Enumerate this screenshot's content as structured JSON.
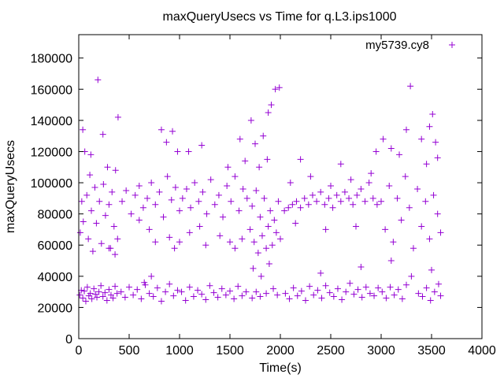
{
  "chart_data": {
    "type": "scatter",
    "title": "maxQueryUsecs vs Time for q.L3.ips1000",
    "xlabel": "Time(s)",
    "ylabel": "maxQueryUsecs",
    "xlim": [
      0,
      4000
    ],
    "ylim": [
      0,
      195000
    ],
    "x_ticks": [
      0,
      500,
      1000,
      1500,
      2000,
      2500,
      3000,
      3500,
      4000
    ],
    "y_ticks": [
      0,
      20000,
      40000,
      60000,
      80000,
      100000,
      120000,
      140000,
      160000,
      180000
    ],
    "x_tick_labels": [
      "0",
      "500",
      "1000",
      "1500",
      "2000",
      "2500",
      "3000",
      "3500",
      "4000"
    ],
    "y_tick_labels": [
      "0",
      "20000",
      "40000",
      "60000",
      "80000",
      "100000",
      "120000",
      "140000",
      "160000",
      "180000"
    ],
    "grid": false,
    "legend_position": "top-right",
    "series": [
      {
        "name": "my5739.cy8",
        "color": "#9400d3",
        "marker": "plus",
        "points": [
          [
            10,
            28000
          ],
          [
            25,
            31000
          ],
          [
            40,
            26000
          ],
          [
            55,
            30500
          ],
          [
            70,
            24000
          ],
          [
            85,
            33000
          ],
          [
            100,
            27500
          ],
          [
            115,
            29000
          ],
          [
            130,
            25500
          ],
          [
            150,
            32000
          ],
          [
            165,
            28500
          ],
          [
            180,
            26500
          ],
          [
            200,
            30000
          ],
          [
            220,
            34000
          ],
          [
            240,
            27000
          ],
          [
            260,
            29500
          ],
          [
            280,
            24500
          ],
          [
            300,
            31500
          ],
          [
            320,
            28000
          ],
          [
            340,
            26000
          ],
          [
            360,
            33500
          ],
          [
            380,
            29000
          ],
          [
            15,
            68000
          ],
          [
            30,
            88000
          ],
          [
            45,
            75000
          ],
          [
            60,
            120000
          ],
          [
            80,
            92000
          ],
          [
            95,
            64000
          ],
          [
            110,
            105000
          ],
          [
            125,
            82000
          ],
          [
            140,
            56000
          ],
          [
            160,
            97000
          ],
          [
            175,
            74000
          ],
          [
            190,
            166000
          ],
          [
            205,
            88000
          ],
          [
            225,
            61000
          ],
          [
            245,
            99000
          ],
          [
            265,
            79000
          ],
          [
            285,
            110000
          ],
          [
            300,
            86000
          ],
          [
            315,
            58000
          ],
          [
            330,
            94000
          ],
          [
            350,
            72000
          ],
          [
            365,
            108000
          ],
          [
            385,
            64000
          ],
          [
            390,
            142000
          ],
          [
            40,
            134000
          ],
          [
            120,
            118000
          ],
          [
            240,
            131000
          ],
          [
            300,
            58000
          ],
          [
            360,
            54000
          ],
          [
            420,
            30000
          ],
          [
            460,
            26500
          ],
          [
            500,
            33000
          ],
          [
            540,
            28000
          ],
          [
            580,
            31500
          ],
          [
            620,
            25500
          ],
          [
            660,
            34500
          ],
          [
            700,
            29000
          ],
          [
            740,
            27000
          ],
          [
            780,
            32500
          ],
          [
            820,
            24000
          ],
          [
            860,
            30000
          ],
          [
            900,
            35000
          ],
          [
            940,
            27500
          ],
          [
            980,
            31000
          ],
          [
            430,
            88000
          ],
          [
            470,
            95000
          ],
          [
            520,
            80000
          ],
          [
            560,
            92000
          ],
          [
            600,
            98000
          ],
          [
            640,
            84000
          ],
          [
            680,
            90000
          ],
          [
            720,
            100000
          ],
          [
            760,
            86000
          ],
          [
            800,
            94000
          ],
          [
            840,
            78000
          ],
          [
            880,
            104000
          ],
          [
            920,
            89000
          ],
          [
            960,
            97000
          ],
          [
            1000,
            82000
          ],
          [
            820,
            134000
          ],
          [
            870,
            126000
          ],
          [
            930,
            133000
          ],
          [
            980,
            120000
          ],
          [
            900,
            65000
          ],
          [
            950,
            58000
          ],
          [
            1000,
            62000
          ],
          [
            700,
            70000
          ],
          [
            760,
            62000
          ],
          [
            600,
            76000
          ],
          [
            650,
            36000
          ],
          [
            720,
            40000
          ],
          [
            1020,
            30000
          ],
          [
            1060,
            24500
          ],
          [
            1100,
            33000
          ],
          [
            1140,
            27000
          ],
          [
            1180,
            31000
          ],
          [
            1220,
            28500
          ],
          [
            1260,
            25000
          ],
          [
            1300,
            34000
          ],
          [
            1340,
            29500
          ],
          [
            1380,
            26500
          ],
          [
            1420,
            32000
          ],
          [
            1460,
            28000
          ],
          [
            1500,
            30500
          ],
          [
            1540,
            25500
          ],
          [
            1580,
            33500
          ],
          [
            1620,
            27500
          ],
          [
            1660,
            30000
          ],
          [
            1030,
            90000
          ],
          [
            1070,
            96000
          ],
          [
            1110,
            84000
          ],
          [
            1150,
            100000
          ],
          [
            1190,
            88000
          ],
          [
            1230,
            94000
          ],
          [
            1270,
            80000
          ],
          [
            1310,
            102000
          ],
          [
            1350,
            86000
          ],
          [
            1390,
            92000
          ],
          [
            1430,
            78000
          ],
          [
            1470,
            98000
          ],
          [
            1510,
            88000
          ],
          [
            1550,
            104000
          ],
          [
            1590,
            82000
          ],
          [
            1630,
            96000
          ],
          [
            1670,
            90000
          ],
          [
            1100,
            68000
          ],
          [
            1200,
            72000
          ],
          [
            1260,
            60000
          ],
          [
            1400,
            66000
          ],
          [
            1500,
            62000
          ],
          [
            1550,
            58000
          ],
          [
            1620,
            64000
          ],
          [
            1090,
            120000
          ],
          [
            1220,
            124000
          ],
          [
            1480,
            110000
          ],
          [
            1600,
            128000
          ],
          [
            1650,
            114000
          ],
          [
            1700,
            70000
          ],
          [
            1720,
            85000
          ],
          [
            1740,
            62000
          ],
          [
            1760,
            95000
          ],
          [
            1780,
            55000
          ],
          [
            1800,
            78000
          ],
          [
            1820,
            66000
          ],
          [
            1840,
            90000
          ],
          [
            1860,
            58000
          ],
          [
            1880,
            72000
          ],
          [
            1900,
            82000
          ],
          [
            1920,
            60000
          ],
          [
            1940,
            76000
          ],
          [
            1960,
            68000
          ],
          [
            1980,
            88000
          ],
          [
            2000,
            64000
          ],
          [
            1710,
            140000
          ],
          [
            1750,
            125000
          ],
          [
            1790,
            110000
          ],
          [
            1830,
            130000
          ],
          [
            1870,
            115000
          ],
          [
            1910,
            150000
          ],
          [
            1950,
            160000
          ],
          [
            1990,
            161000
          ],
          [
            1880,
            145000
          ],
          [
            1730,
            45000
          ],
          [
            1810,
            40000
          ],
          [
            1890,
            48000
          ],
          [
            1720,
            26000
          ],
          [
            1760,
            30000
          ],
          [
            1800,
            27000
          ],
          [
            1860,
            29000
          ],
          [
            1930,
            32000
          ],
          [
            1970,
            28000
          ],
          [
            2050,
            29000
          ],
          [
            2090,
            25500
          ],
          [
            2130,
            32500
          ],
          [
            2170,
            27500
          ],
          [
            2210,
            30500
          ],
          [
            2250,
            24500
          ],
          [
            2290,
            33500
          ],
          [
            2330,
            28000
          ],
          [
            2370,
            31000
          ],
          [
            2410,
            26000
          ],
          [
            2450,
            34000
          ],
          [
            2490,
            29500
          ],
          [
            2530,
            27000
          ],
          [
            2570,
            32000
          ],
          [
            2610,
            25000
          ],
          [
            2650,
            30000
          ],
          [
            2690,
            35500
          ],
          [
            2730,
            28500
          ],
          [
            2770,
            31500
          ],
          [
            2810,
            26500
          ],
          [
            2850,
            33000
          ],
          [
            2890,
            29000
          ],
          [
            2930,
            27500
          ],
          [
            2970,
            32500
          ],
          [
            2040,
            82000
          ],
          [
            2080,
            84000
          ],
          [
            2120,
            86000
          ],
          [
            2160,
            88000
          ],
          [
            2200,
            84000
          ],
          [
            2240,
            90000
          ],
          [
            2280,
            86000
          ],
          [
            2320,
            92000
          ],
          [
            2360,
            88000
          ],
          [
            2400,
            94000
          ],
          [
            2440,
            86000
          ],
          [
            2480,
            90000
          ],
          [
            2520,
            84000
          ],
          [
            2560,
            92000
          ],
          [
            2600,
            88000
          ],
          [
            2640,
            94000
          ],
          [
            2680,
            90000
          ],
          [
            2720,
            86000
          ],
          [
            2760,
            92000
          ],
          [
            2800,
            96000
          ],
          [
            2840,
            88000
          ],
          [
            2880,
            100000
          ],
          [
            2920,
            90000
          ],
          [
            2960,
            86000
          ],
          [
            2100,
            100000
          ],
          [
            2300,
            104000
          ],
          [
            2500,
            98000
          ],
          [
            2700,
            102000
          ],
          [
            2900,
            106000
          ],
          [
            2200,
            115000
          ],
          [
            2600,
            112000
          ],
          [
            2950,
            120000
          ],
          [
            2400,
            42000
          ],
          [
            2800,
            46000
          ],
          [
            2150,
            74000
          ],
          [
            2450,
            70000
          ],
          [
            2750,
            72000
          ],
          [
            3010,
            30000
          ],
          [
            3050,
            26000
          ],
          [
            3090,
            33000
          ],
          [
            3130,
            28000
          ],
          [
            3170,
            31500
          ],
          [
            3210,
            25500
          ],
          [
            3250,
            34500
          ],
          [
            3370,
            29000
          ],
          [
            3410,
            27000
          ],
          [
            3450,
            32500
          ],
          [
            3490,
            24500
          ],
          [
            3530,
            30000
          ],
          [
            3570,
            35000
          ],
          [
            3590,
            27500
          ],
          [
            3000,
            88000
          ],
          [
            3040,
            70000
          ],
          [
            3080,
            98000
          ],
          [
            3120,
            62000
          ],
          [
            3160,
            90000
          ],
          [
            3200,
            76000
          ],
          [
            3240,
            104000
          ],
          [
            3280,
            84000
          ],
          [
            3320,
            58000
          ],
          [
            3360,
            96000
          ],
          [
            3400,
            72000
          ],
          [
            3440,
            88000
          ],
          [
            3480,
            64000
          ],
          [
            3520,
            92000
          ],
          [
            3560,
            80000
          ],
          [
            3590,
            68000
          ],
          [
            3020,
            128000
          ],
          [
            3100,
            122000
          ],
          [
            3180,
            118000
          ],
          [
            3290,
            162000
          ],
          [
            3250,
            134000
          ],
          [
            3400,
            128000
          ],
          [
            3450,
            112000
          ],
          [
            3480,
            136000
          ],
          [
            3510,
            144000
          ],
          [
            3540,
            126000
          ],
          [
            3560,
            116000
          ],
          [
            3300,
            40000
          ],
          [
            3500,
            44000
          ],
          [
            3100,
            50000
          ]
        ]
      }
    ]
  }
}
